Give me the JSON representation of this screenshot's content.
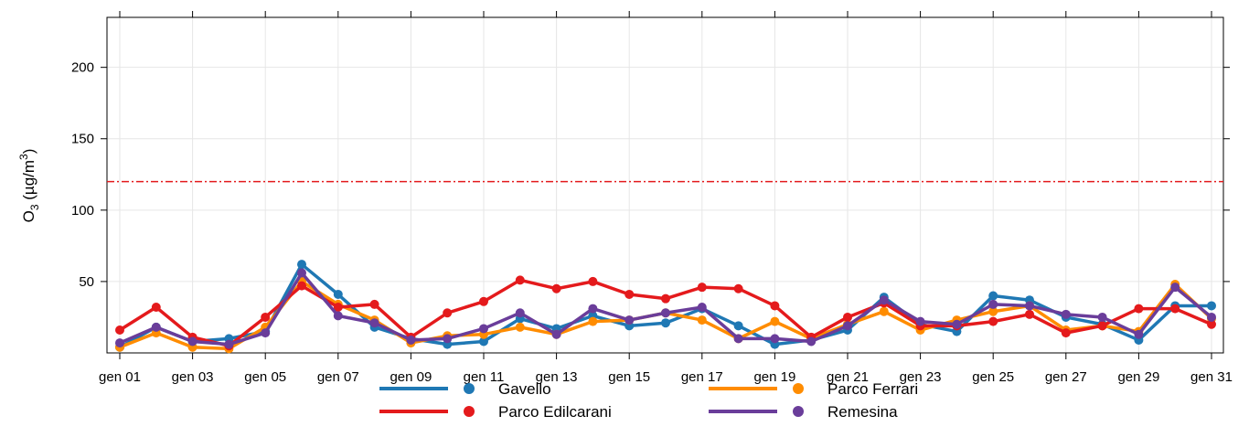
{
  "chart_data": {
    "type": "line",
    "ylabel": {
      "main": "O",
      "sub": "3",
      "unit_pre": " (µg/m",
      "unit_sup": "3",
      "unit_post": ")"
    },
    "ylim": [
      0,
      235
    ],
    "y_ticks": [
      50,
      100,
      150,
      200
    ],
    "x_range": [
      1,
      31
    ],
    "x_ticks": [
      {
        "day": 1,
        "label": "gen 01"
      },
      {
        "day": 3,
        "label": "gen 03"
      },
      {
        "day": 5,
        "label": "gen 05"
      },
      {
        "day": 7,
        "label": "gen 07"
      },
      {
        "day": 9,
        "label": "gen 09"
      },
      {
        "day": 11,
        "label": "gen 11"
      },
      {
        "day": 13,
        "label": "gen 13"
      },
      {
        "day": 15,
        "label": "gen 15"
      },
      {
        "day": 17,
        "label": "gen 17"
      },
      {
        "day": 19,
        "label": "gen 19"
      },
      {
        "day": 21,
        "label": "gen 21"
      },
      {
        "day": 23,
        "label": "gen 23"
      },
      {
        "day": 25,
        "label": "gen 25"
      },
      {
        "day": 27,
        "label": "gen 27"
      },
      {
        "day": 29,
        "label": "gen 29"
      },
      {
        "day": 31,
        "label": "gen 31"
      }
    ],
    "threshold": {
      "value": 120,
      "color": "#e41a1c"
    },
    "grid": true,
    "legend_position": "bottom",
    "series": [
      {
        "name": "Gavello",
        "color": "#1f78b4",
        "values": [
          4,
          18,
          8,
          10,
          15,
          62,
          41,
          18,
          10,
          6,
          8,
          24,
          17,
          26,
          19,
          21,
          31,
          19,
          6,
          9,
          16,
          39,
          20,
          15,
          40,
          37,
          25,
          20,
          9,
          33,
          33
        ]
      },
      {
        "name": "Parco Ferrari",
        "color": "#ff8c00",
        "values": [
          4,
          14,
          4,
          3,
          18,
          50,
          34,
          23,
          7,
          12,
          13,
          18,
          13,
          22,
          23,
          28,
          23,
          10,
          22,
          10,
          20,
          29,
          16,
          23,
          29,
          33,
          16,
          19,
          15,
          48,
          24
        ]
      },
      {
        "name": "Parco Edilcarani",
        "color": "#e41a1c",
        "values": [
          16,
          32,
          11,
          5,
          25,
          47,
          32,
          34,
          11,
          28,
          36,
          51,
          45,
          50,
          41,
          38,
          46,
          45,
          33,
          11,
          25,
          35,
          19,
          19,
          22,
          27,
          14,
          19,
          31,
          31,
          20
        ]
      },
      {
        "name": "Remesina",
        "color": "#6a3d9a",
        "values": [
          7,
          18,
          8,
          6,
          14,
          56,
          26,
          21,
          9,
          10,
          17,
          28,
          13,
          31,
          23,
          28,
          32,
          10,
          10,
          8,
          19,
          37,
          22,
          20,
          34,
          33,
          27,
          25,
          13,
          46,
          25
        ]
      }
    ]
  }
}
